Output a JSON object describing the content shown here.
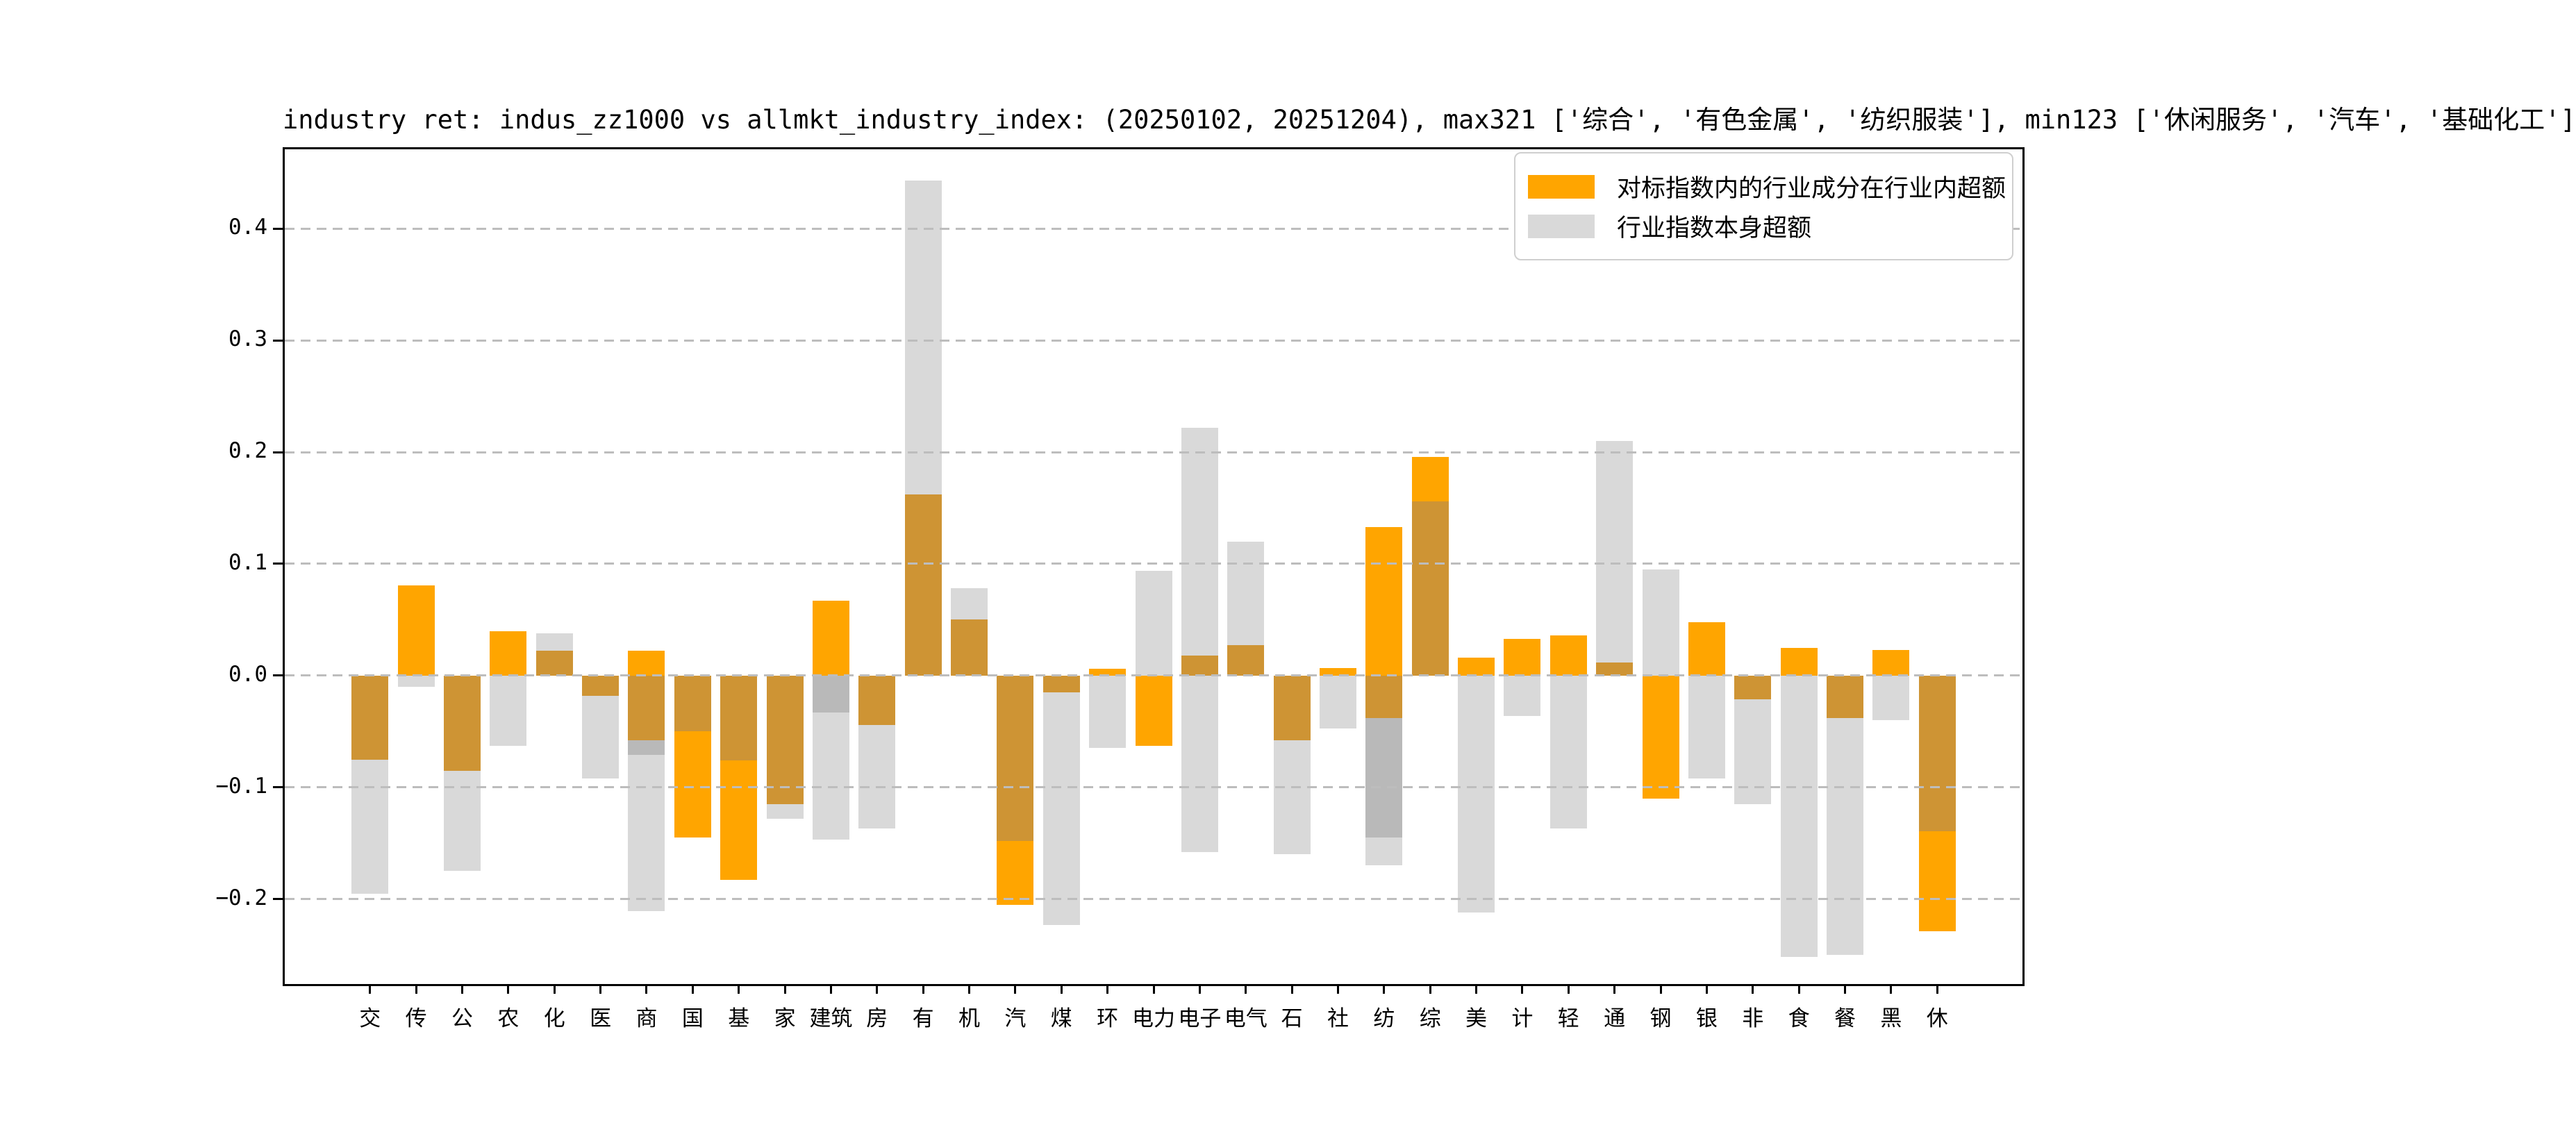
{
  "title": "industry ret: indus_zz1000 vs allmkt_industry_index: (20250102, 20251204), max321 ['综合', '有色金属', '纺织服装'], min123 ['休闲服务', '汽车', '基础化工']",
  "legend": [
    {
      "label": "对标指数内的行业成分在行业内超额",
      "color": "#FFA500"
    },
    {
      "label": "行业指数本身超额",
      "color": "#D9D9D9"
    }
  ],
  "colors": {
    "o": "#FFA500",
    "m": "#CE9434",
    "g": "#D9D9D9",
    "d": "#B9B9B9",
    "grid": "#BDBDBD",
    "axis": "#000000"
  },
  "chart_data": {
    "type": "bar",
    "title": "industry ret: indus_zz1000 vs allmkt_industry_index: (20250102, 20251204), max321 ['综合', '有色金属', '纺织服装'], min123 ['休闲服务', '汽车', '基础化工']",
    "xlabel": "",
    "ylabel": "",
    "grid": "horizontal-dashed",
    "legend_position": "upper right",
    "ylim": [
      -0.276,
      0.471
    ],
    "yticks": [
      {
        "v": 0.4,
        "label": "0.4"
      },
      {
        "v": 0.3,
        "label": "0.3"
      },
      {
        "v": 0.2,
        "label": "0.2"
      },
      {
        "v": 0.1,
        "label": "0.1"
      },
      {
        "v": 0.0,
        "label": "0.0"
      },
      {
        "v": -0.1,
        "label": "−0.1"
      },
      {
        "v": -0.2,
        "label": "−0.2"
      }
    ],
    "categories": [
      "交",
      "传",
      "公",
      "农",
      "化",
      "医",
      "商",
      "国",
      "基",
      "家",
      "建筑",
      "房",
      "有",
      "机",
      "汽",
      "煤",
      "环",
      "电力",
      "电子",
      "电气",
      "石",
      "社",
      "纺",
      "综",
      "美",
      "计",
      "轻",
      "通",
      "钢",
      "银",
      "非",
      "食",
      "餐",
      "黑",
      "休"
    ],
    "series": [
      {
        "name": "对标指数内的行业成分在行业内超额",
        "color": "#FFA500",
        "values": [
          -0.075,
          0.081,
          -0.085,
          0.04,
          0.022,
          -0.018,
          0.022,
          -0.145,
          -0.183,
          -0.115,
          0.067,
          -0.044,
          0.162,
          0.05,
          -0.205,
          -0.015,
          0.006,
          -0.063,
          0.018,
          0.027,
          -0.058,
          0.007,
          0.133,
          0.196,
          0.016,
          0.033,
          0.036,
          0.012,
          -0.11,
          0.048,
          -0.021,
          0.025,
          -0.038,
          0.023,
          -0.229
        ]
      },
      {
        "name": "行业指数本身超额",
        "color": "#D9D9D9",
        "values": [
          -0.195,
          -0.01,
          -0.175,
          -0.063,
          0.038,
          -0.092,
          -0.211,
          -0.05,
          -0.076,
          -0.128,
          -0.147,
          -0.137,
          0.443,
          0.078,
          -0.148,
          -0.223,
          -0.065,
          0.094,
          0.222,
          0.12,
          -0.16,
          -0.047,
          -0.17,
          0.156,
          -0.212,
          -0.036,
          -0.137,
          0.21,
          0.095,
          -0.092,
          -0.115,
          -0.252,
          -0.25,
          -0.04,
          -0.139
        ]
      }
    ],
    "segments": [
      [
        [
          "m",
          -0.075,
          0
        ],
        [
          "g",
          -0.195,
          -0.075
        ]
      ],
      [
        [
          "o",
          0,
          0.081
        ],
        [
          "g",
          -0.01,
          0
        ]
      ],
      [
        [
          "m",
          -0.085,
          0
        ],
        [
          "g",
          -0.175,
          -0.085
        ]
      ],
      [
        [
          "o",
          0,
          0.04
        ],
        [
          "g",
          -0.063,
          0
        ]
      ],
      [
        [
          "m",
          0,
          0.022
        ],
        [
          "g",
          0.022,
          0.038
        ]
      ],
      [
        [
          "m",
          -0.018,
          0
        ],
        [
          "g",
          -0.092,
          -0.018
        ]
      ],
      [
        [
          "o",
          0,
          0.022
        ],
        [
          "m",
          -0.058,
          0
        ],
        [
          "d",
          -0.071,
          -0.058
        ],
        [
          "g",
          -0.211,
          -0.071
        ]
      ],
      [
        [
          "m",
          -0.05,
          0
        ],
        [
          "o",
          -0.145,
          -0.05
        ]
      ],
      [
        [
          "m",
          -0.076,
          0
        ],
        [
          "o",
          -0.183,
          -0.076
        ]
      ],
      [
        [
          "m",
          -0.115,
          0
        ],
        [
          "g",
          -0.128,
          -0.115
        ]
      ],
      [
        [
          "o",
          0,
          0.067
        ],
        [
          "d",
          -0.033,
          0
        ],
        [
          "g",
          -0.147,
          -0.033
        ]
      ],
      [
        [
          "m",
          -0.044,
          0
        ],
        [
          "g",
          -0.137,
          -0.044
        ]
      ],
      [
        [
          "m",
          0,
          0.162
        ],
        [
          "g",
          0.162,
          0.443
        ]
      ],
      [
        [
          "m",
          0,
          0.05
        ],
        [
          "g",
          0.05,
          0.078
        ]
      ],
      [
        [
          "m",
          -0.148,
          0
        ],
        [
          "o",
          -0.205,
          -0.148
        ]
      ],
      [
        [
          "m",
          -0.015,
          0
        ],
        [
          "g",
          -0.223,
          -0.015
        ]
      ],
      [
        [
          "o",
          0,
          0.006
        ],
        [
          "g",
          -0.065,
          0
        ]
      ],
      [
        [
          "g",
          0,
          0.094
        ],
        [
          "o",
          -0.063,
          0
        ]
      ],
      [
        [
          "m",
          0,
          0.018
        ],
        [
          "g",
          0.018,
          0.222
        ],
        [
          "g",
          -0.158,
          0
        ]
      ],
      [
        [
          "m",
          0,
          0.027
        ],
        [
          "g",
          0.027,
          0.12
        ]
      ],
      [
        [
          "m",
          -0.058,
          0
        ],
        [
          "g",
          -0.16,
          -0.058
        ]
      ],
      [
        [
          "o",
          0,
          0.007
        ],
        [
          "g",
          -0.047,
          0
        ]
      ],
      [
        [
          "o",
          0,
          0.133
        ],
        [
          "m",
          -0.038,
          0
        ],
        [
          "d",
          -0.145,
          -0.038
        ],
        [
          "g",
          -0.17,
          -0.145
        ]
      ],
      [
        [
          "m",
          0,
          0.156
        ],
        [
          "o",
          0.156,
          0.196
        ]
      ],
      [
        [
          "o",
          0,
          0.016
        ],
        [
          "g",
          -0.212,
          0
        ]
      ],
      [
        [
          "o",
          0,
          0.033
        ],
        [
          "g",
          -0.036,
          0
        ]
      ],
      [
        [
          "o",
          0,
          0.036
        ],
        [
          "g",
          -0.137,
          0
        ]
      ],
      [
        [
          "m",
          0,
          0.012
        ],
        [
          "g",
          0.012,
          0.21
        ]
      ],
      [
        [
          "g",
          0,
          0.095
        ],
        [
          "o",
          -0.11,
          0
        ]
      ],
      [
        [
          "o",
          0,
          0.048
        ],
        [
          "g",
          -0.092,
          0
        ]
      ],
      [
        [
          "m",
          -0.021,
          0
        ],
        [
          "g",
          -0.115,
          -0.021
        ]
      ],
      [
        [
          "o",
          0,
          0.025
        ],
        [
          "g",
          -0.252,
          0
        ]
      ],
      [
        [
          "m",
          -0.038,
          0
        ],
        [
          "g",
          -0.25,
          -0.038
        ]
      ],
      [
        [
          "o",
          0,
          0.023
        ],
        [
          "g",
          -0.04,
          0
        ]
      ],
      [
        [
          "m",
          -0.139,
          0
        ],
        [
          "o",
          -0.229,
          -0.139
        ]
      ]
    ]
  }
}
